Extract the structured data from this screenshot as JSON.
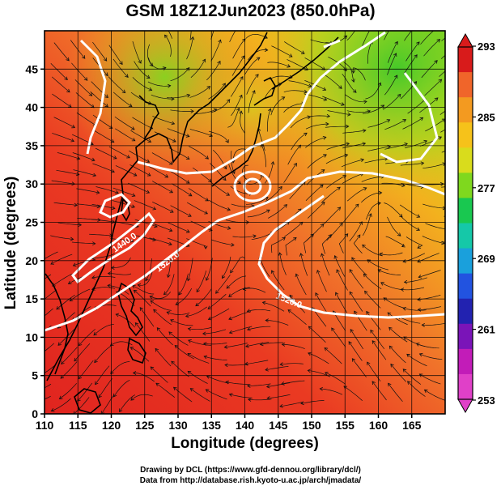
{
  "title": "GSM 18Z12Jun2023 (850.0hPa)",
  "x_axis": {
    "label": "Longitude (degrees)",
    "range": [
      110,
      170
    ],
    "ticks": [
      110,
      115,
      120,
      125,
      130,
      135,
      140,
      145,
      150,
      155,
      160,
      165
    ]
  },
  "y_axis": {
    "label": "Latitude (degrees)",
    "range": [
      0,
      50
    ],
    "ticks": [
      0,
      5,
      10,
      15,
      20,
      25,
      30,
      35,
      40,
      45
    ]
  },
  "colorbar": {
    "ticks": [
      "293",
      "285",
      "277",
      "269",
      "261",
      "253"
    ],
    "colors": [
      "#d81b1b",
      "#f0652a",
      "#f39a20",
      "#f6c21a",
      "#d9dc1c",
      "#7fd81e",
      "#19c850",
      "#15c8a8",
      "#1aa0dc",
      "#2253e0",
      "#2222b0",
      "#7a14b8",
      "#c21cb8",
      "#e040c8"
    ]
  },
  "contour_labels": [
    "1440.0",
    "1520.0",
    "1520.0"
  ],
  "credits": {
    "line1": "Drawing by DCL (https://www.gfd-dennou.org/library/dcl/)",
    "line2": "Data from http://database.rish.kyoto-u.ac.jp/arch/jmadata/"
  },
  "fields": {
    "temperature_units_hint": "293 ... 253",
    "map_region": "East Asia / Western North Pacific"
  }
}
